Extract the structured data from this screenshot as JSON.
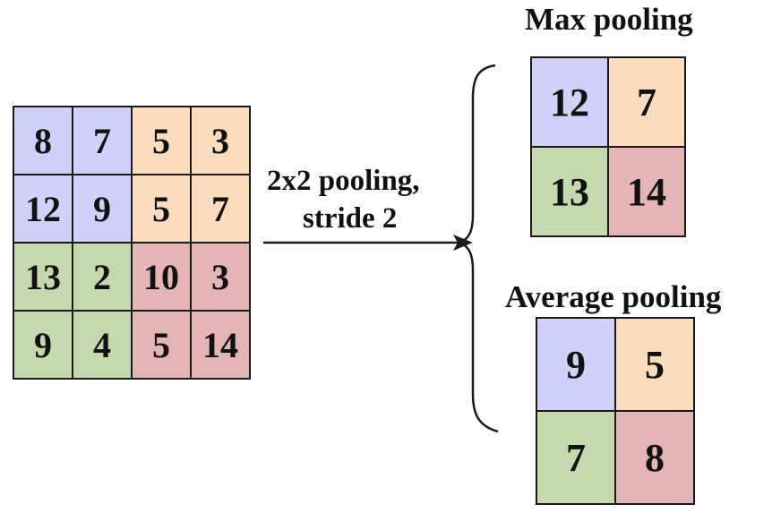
{
  "colors": {
    "blue": "#d0d0f8",
    "orange": "#fcdcbf",
    "green": "#c4d9ad",
    "red": "#e3b5b4"
  },
  "input_matrix": {
    "values": [
      [
        "8",
        "7",
        "5",
        "3"
      ],
      [
        "12",
        "9",
        "5",
        "7"
      ],
      [
        "13",
        "2",
        "10",
        "3"
      ],
      [
        "9",
        "4",
        "5",
        "14"
      ]
    ],
    "colors": [
      [
        "blue",
        "blue",
        "orange",
        "orange"
      ],
      [
        "blue",
        "blue",
        "orange",
        "orange"
      ],
      [
        "green",
        "green",
        "red",
        "red"
      ],
      [
        "green",
        "green",
        "red",
        "red"
      ]
    ]
  },
  "operation": {
    "line1": "2x2 pooling,",
    "line2": "stride 2"
  },
  "max_pooling": {
    "title": "Max pooling",
    "values": [
      [
        "12",
        "7"
      ],
      [
        "13",
        "14"
      ]
    ],
    "colors": [
      [
        "blue",
        "orange"
      ],
      [
        "green",
        "red"
      ]
    ]
  },
  "average_pooling": {
    "title": "Average pooling",
    "values": [
      [
        "9",
        "5"
      ],
      [
        "7",
        "8"
      ]
    ],
    "colors": [
      [
        "blue",
        "orange"
      ],
      [
        "green",
        "red"
      ]
    ]
  }
}
